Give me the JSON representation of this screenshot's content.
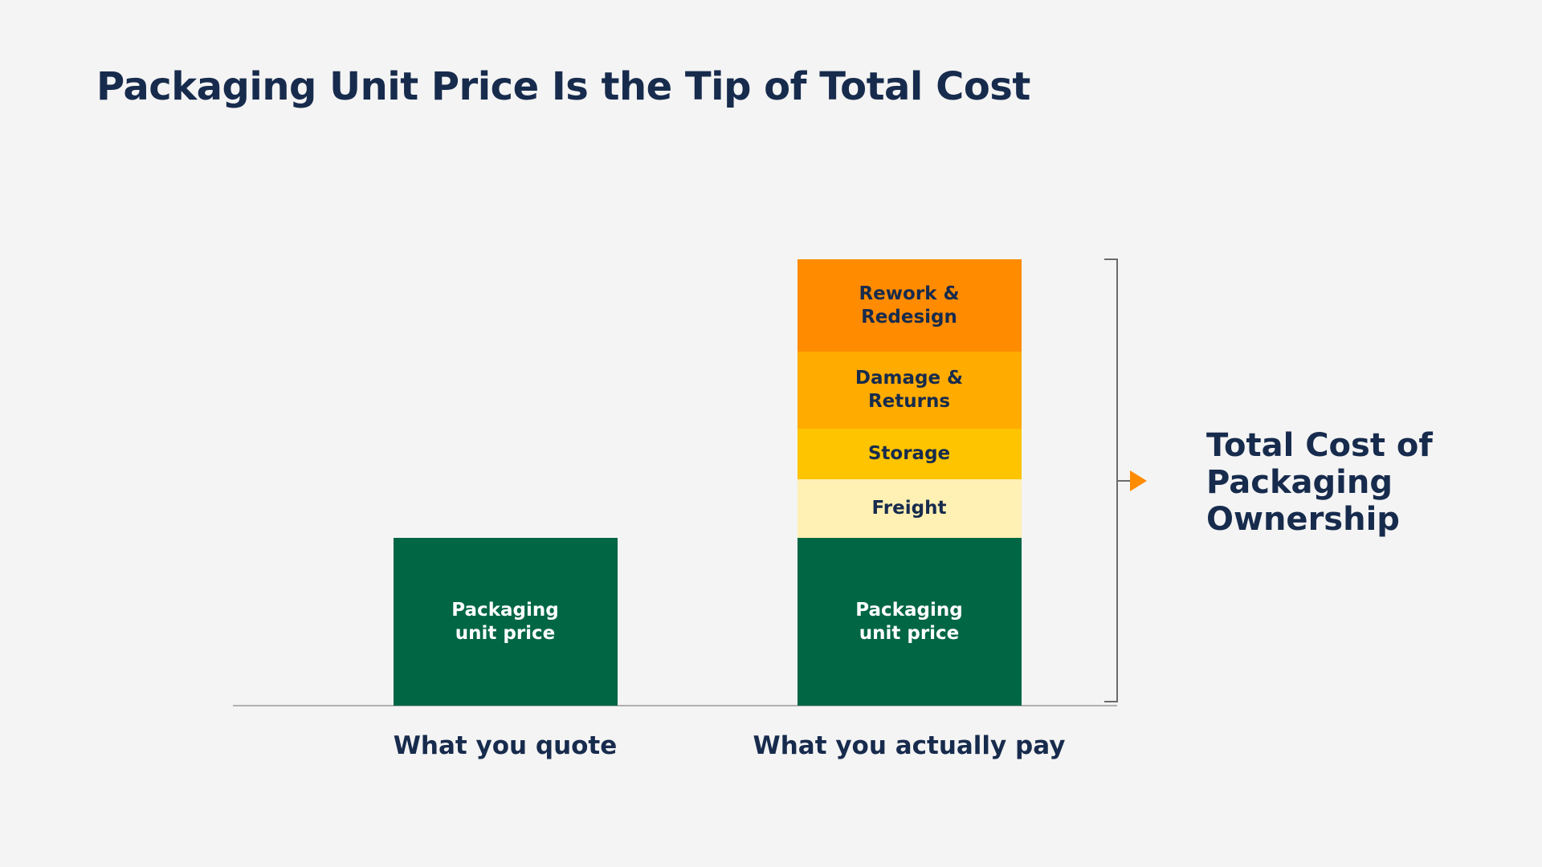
{
  "chart_data": {
    "type": "stacked_bar",
    "title": "Packaging Unit Price Is the Tip of Total Cost",
    "categories": [
      "What you quote",
      "What you actually pay"
    ],
    "series": [
      {
        "name": "Packaging unit price",
        "color": "#006644",
        "label_color": "#ffffff",
        "values": [
          100,
          100
        ]
      },
      {
        "name": "Freight",
        "color": "#FFF0B3",
        "label_color": "#172B4D",
        "values": [
          null,
          35
        ]
      },
      {
        "name": "Storage",
        "color": "#FFC400",
        "label_color": "#172B4D",
        "values": [
          null,
          30
        ]
      },
      {
        "name": "Damage & Returns",
        "color": "#FFAB00",
        "label_color": "#172B4D",
        "values": [
          null,
          46
        ]
      },
      {
        "name": "Rework & Redesign",
        "color": "#FF8B00",
        "label_color": "#172B4D",
        "values": [
          null,
          55
        ]
      }
    ],
    "annotation": "Total Cost of Packaging Ownership",
    "annotation_color": "#FF8B00"
  }
}
